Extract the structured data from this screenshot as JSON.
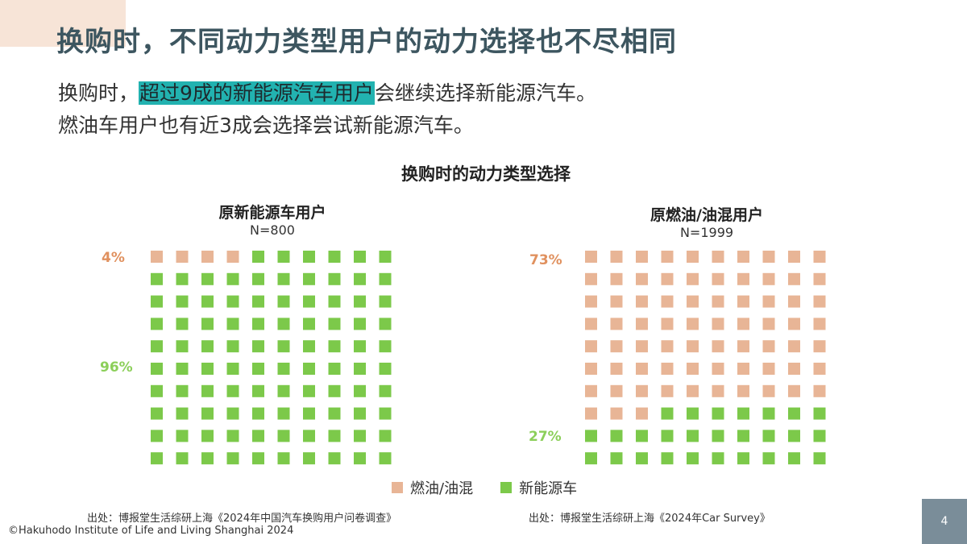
{
  "slide": {
    "title": "换购时，不同动力类型用户的动力选择也不尽相同",
    "lead_line1_prefix": "换购时，",
    "lead_line1_highlight": "超过9成的新能源汽车用户",
    "lead_line1_suffix": "会继续选择新能源汽车。",
    "lead_line2": "燃油车用户也有近3成会选择尝试新能源汽车。",
    "page_number": "4",
    "copyright": "©Hakuhodo Institute of Life and Living Shanghai 2024"
  },
  "chart_data": {
    "type": "waffle",
    "title": "换购时的动力类型选择",
    "colors": {
      "fuel": "#e8b596",
      "nev": "#7cc94a",
      "fuel_label": "#e0915f",
      "nev_label": "#8ccf5a"
    },
    "legend": [
      "燃油/油混",
      "新能源车"
    ],
    "panels": [
      {
        "name": "原新能源车用户",
        "n_label": "N=800",
        "grid": {
          "rows": 10,
          "cols": 10
        },
        "values": {
          "燃油/油混": 4,
          "新能源车": 96
        },
        "labels": {
          "燃油/油混": "4%",
          "新能源车": "96%"
        },
        "source": "出处：博报堂生活综研上海《2024年中国汽车换购用户问卷调查》"
      },
      {
        "name": "原燃油/油混用户",
        "n_label": "N=1999",
        "grid": {
          "rows": 10,
          "cols": 10
        },
        "values": {
          "燃油/油混": 73,
          "新能源车": 27
        },
        "labels": {
          "燃油/油混": "73%",
          "新能源车": "27%"
        },
        "source": "出处：博报堂生活综研上海《2024年Car Survey》"
      }
    ]
  }
}
